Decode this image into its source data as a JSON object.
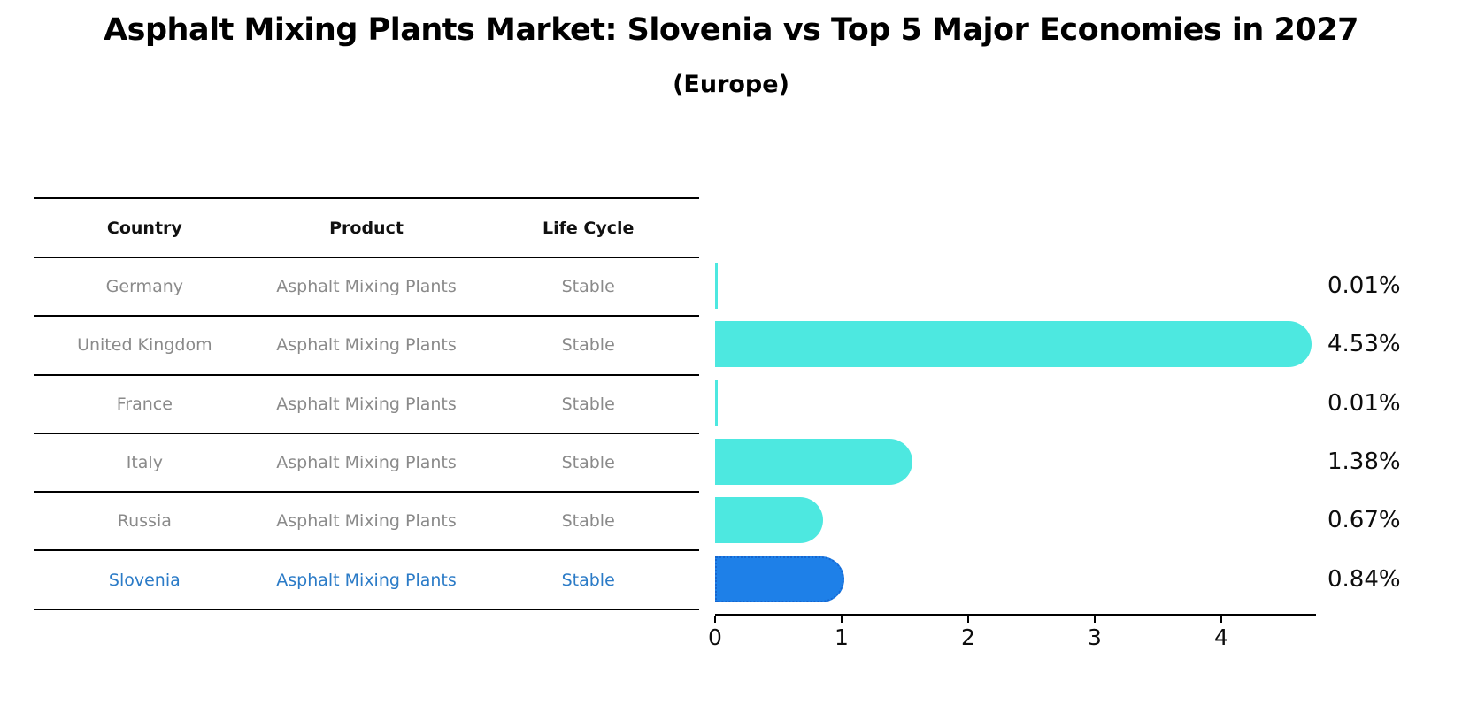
{
  "title": "Asphalt Mixing Plants Market: Slovenia vs Top 5 Major Economies in 2027",
  "subtitle": "(Europe)",
  "table": {
    "headers": [
      "Country",
      "Product",
      "Life Cycle"
    ],
    "rows": [
      {
        "country": "Germany",
        "product": "Asphalt Mixing Plants",
        "life_cycle": "Stable"
      },
      {
        "country": "United Kingdom",
        "product": "Asphalt Mixing Plants",
        "life_cycle": "Stable"
      },
      {
        "country": "France",
        "product": "Asphalt Mixing Plants",
        "life_cycle": "Stable"
      },
      {
        "country": "Italy",
        "product": "Asphalt Mixing Plants",
        "life_cycle": "Stable"
      },
      {
        "country": "Russia",
        "product": "Asphalt Mixing Plants",
        "life_cycle": "Stable"
      },
      {
        "country": "Slovenia",
        "product": "Asphalt Mixing Plants",
        "life_cycle": "Stable"
      }
    ],
    "highlight_row": "Slovenia"
  },
  "chart_data": {
    "type": "bar",
    "orientation": "horizontal",
    "categories": [
      "Germany",
      "United Kingdom",
      "France",
      "Italy",
      "Russia",
      "Slovenia"
    ],
    "values": [
      0.01,
      4.53,
      0.01,
      1.38,
      0.67,
      0.84
    ],
    "labels": [
      "0.01%",
      "4.53%",
      "0.01%",
      "1.38%",
      "0.67%",
      "0.84%"
    ],
    "x_ticks": [
      0,
      1,
      2,
      3,
      4
    ],
    "xlim": [
      0,
      4.75
    ],
    "grid": false,
    "legend": false,
    "highlight_index": 5,
    "title": "Asphalt Mixing Plants Market: Slovenia vs Top 5 Major Economies in 2027 (Europe)"
  },
  "colors": {
    "bar": "#4de8e0",
    "highlight_bar": "#1e80e8",
    "highlight_bar_edge": "#1566d0",
    "highlight_text": "#2b7bc7",
    "table_text": "#8a8a8a",
    "header_text": "#111111",
    "axis": "#000000"
  }
}
